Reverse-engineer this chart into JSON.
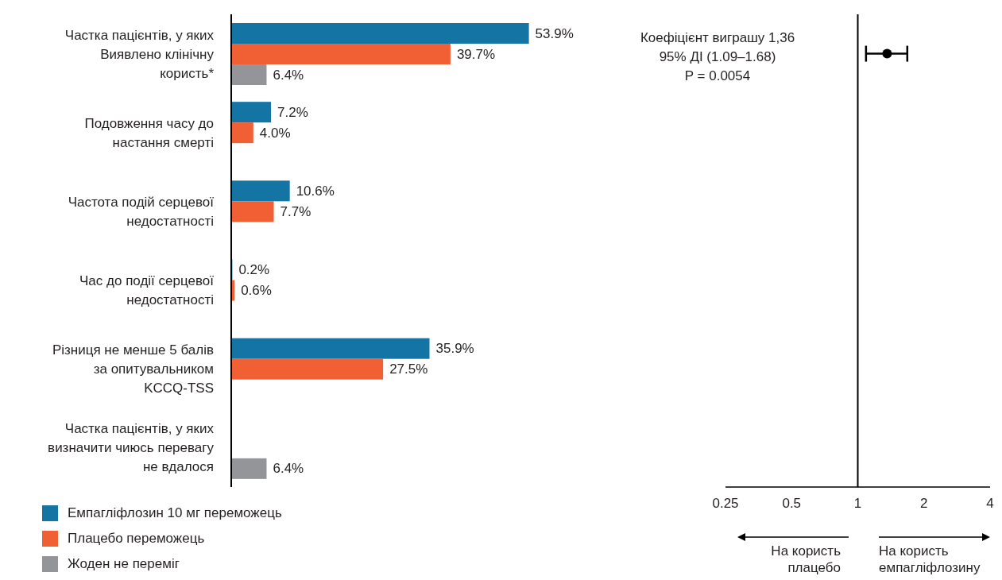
{
  "chart_data": [
    {
      "type": "bar",
      "orientation": "horizontal",
      "tick_labels": "y",
      "legend": "bottom",
      "categories": [
        "Частка пацієнтів, у яких Виявлено клінічну користь*",
        "Подовження часу до настання смерті",
        "Частота подій серцевої недостатності",
        "Час до події серцевої недостатності",
        "Різниця не менше 5 балів за опитувальником KCCQ-TSS",
        "Частка пацієнтів, у яких визначити чиюсь перевагу не вдалося"
      ],
      "series": [
        {
          "name": "Емпагліфлозин 10 мг переможець",
          "color": "#1474a4",
          "values": [
            53.9,
            7.2,
            10.6,
            0.2,
            35.9,
            null
          ],
          "value_labels": [
            "53.9%",
            "7.2%",
            "10.6%",
            "0.2%",
            "35.9%",
            null
          ]
        },
        {
          "name": "Плацебо переможець",
          "color": "#f15f35",
          "values": [
            39.7,
            4.0,
            7.7,
            0.6,
            27.5,
            null
          ],
          "value_labels": [
            "39.7%",
            "4.0%",
            "7.7%",
            "0.6%",
            "27.5%",
            null
          ]
        },
        {
          "name": "Жоден не переміг",
          "color": "#939598",
          "values": [
            6.4,
            null,
            null,
            null,
            null,
            6.4
          ],
          "value_labels": [
            "6.4%",
            null,
            null,
            null,
            null,
            "6.4%"
          ]
        }
      ]
    },
    {
      "type": "scatter",
      "orientation": "horizontal",
      "log": "x",
      "marker": "circle",
      "tick_labels": "x",
      "categories": [
        null,
        null,
        null,
        null,
        null,
        null
      ],
      "series": [
        {
          "color": "#000000",
          "values": [
            1.36,
            null,
            null,
            null,
            null,
            null
          ],
          "errors": [
            [
              1.09,
              1.68
            ],
            null,
            null,
            null,
            null,
            null
          ]
        }
      ],
      "xlim": [
        0.25,
        4
      ],
      "xticks": [
        0.25,
        0.5,
        1,
        2,
        4
      ],
      "ref_lines": [
        {
          "axis": "x",
          "value": 1,
          "color": "#000000"
        }
      ],
      "annotations": [
        "Коефіцієнт виграшу 1,36",
        "95% ДІ (1.09–1.68)",
        "P = 0.0054",
        "На користь плацебо",
        "На користь емпагліфлозину"
      ]
    }
  ]
}
